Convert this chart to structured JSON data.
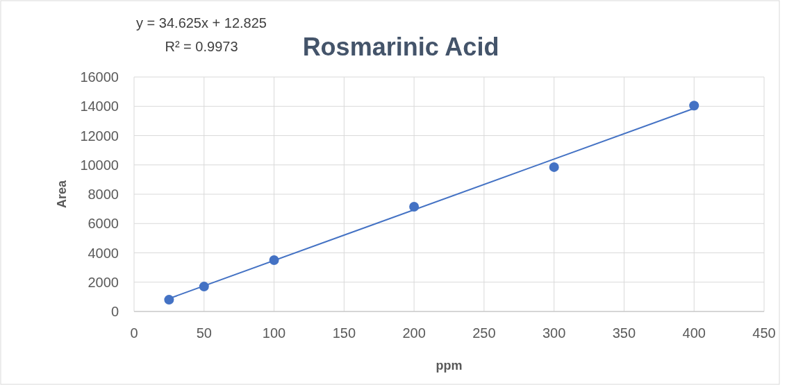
{
  "chart_data": {
    "type": "scatter",
    "title": "Rosmarinic Acid",
    "xlabel": "ppm",
    "ylabel": "Area",
    "annotations": [
      "y = 34.625x + 12.825",
      "R² = 0.9973"
    ],
    "x": [
      25,
      50,
      100,
      200,
      300,
      400
    ],
    "series": [
      {
        "color": "#4472c4",
        "marker": "circle",
        "values": [
          800,
          1700,
          3500,
          7150,
          9850,
          14050
        ]
      },
      {
        "type": "line",
        "color": "#4472c4",
        "x": [
          25,
          400
        ],
        "values": [
          880,
          13860
        ],
        "line_style": "solid"
      }
    ],
    "xlim": [
      0,
      450
    ],
    "xticks": [
      0,
      50,
      100,
      150,
      200,
      250,
      300,
      350,
      400,
      450
    ],
    "ylim": [
      0,
      16000
    ],
    "yticks": [
      0,
      2000,
      4000,
      6000,
      8000,
      10000,
      12000,
      14000,
      16000
    ],
    "grid": true
  }
}
